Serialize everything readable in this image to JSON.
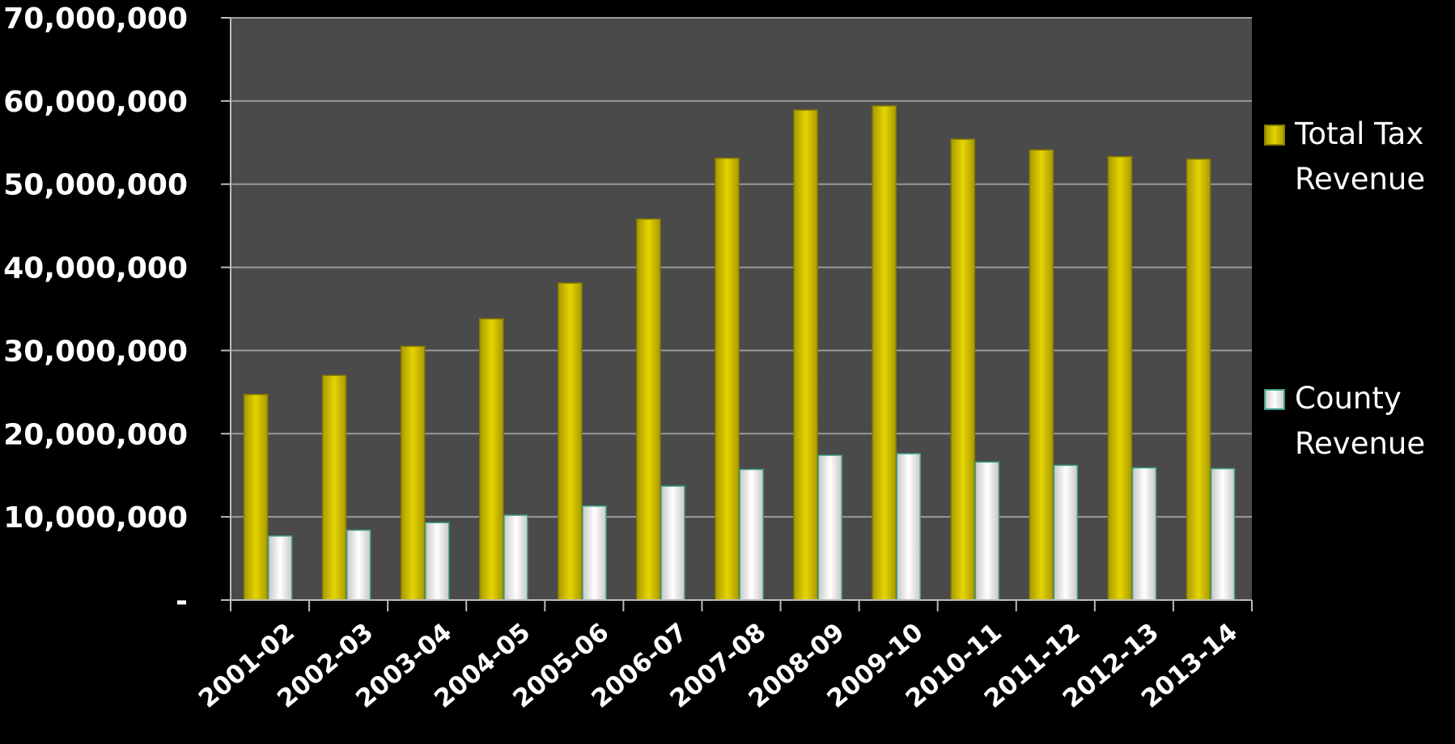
{
  "chart_data": {
    "type": "bar",
    "categories": [
      "2001-02",
      "2002-03",
      "2003-04",
      "2004-05",
      "2005-06",
      "2006-07",
      "2007-08",
      "2008-09",
      "2009-10",
      "2010-11",
      "2011-12",
      "2012-13",
      "2013-14"
    ],
    "series": [
      {
        "name_lines": [
          "Total Tax",
          "Revenue"
        ],
        "color": "#c9b800",
        "values": [
          24700000,
          27000000,
          30500000,
          33800000,
          38100000,
          45800000,
          53100000,
          58900000,
          59400000,
          55400000,
          54100000,
          53300000,
          53000000
        ]
      },
      {
        "name_lines": [
          "County",
          "Revenue"
        ],
        "color": "#e8e8e8",
        "values": [
          7700000,
          8400000,
          9300000,
          10200000,
          11300000,
          13700000,
          15700000,
          17400000,
          17600000,
          16600000,
          16200000,
          15900000,
          15800000
        ]
      }
    ],
    "y_tick_labels": [
      "-",
      "10,000,000",
      "20,000,000",
      "30,000,000",
      "40,000,000",
      "50,000,000",
      "60,000,000",
      "70,000,000"
    ],
    "ylim": [
      0,
      70000000
    ],
    "y_tick_step": 10000000,
    "grid": true,
    "legend_position": "right",
    "title": "",
    "xlabel": "",
    "ylabel": "",
    "colors": {
      "background": "#000000",
      "plot_area": "#4a4a4a",
      "gridline": "#9a9a9a",
      "axis": "#bbbbbb",
      "text": "#ffffff"
    }
  }
}
